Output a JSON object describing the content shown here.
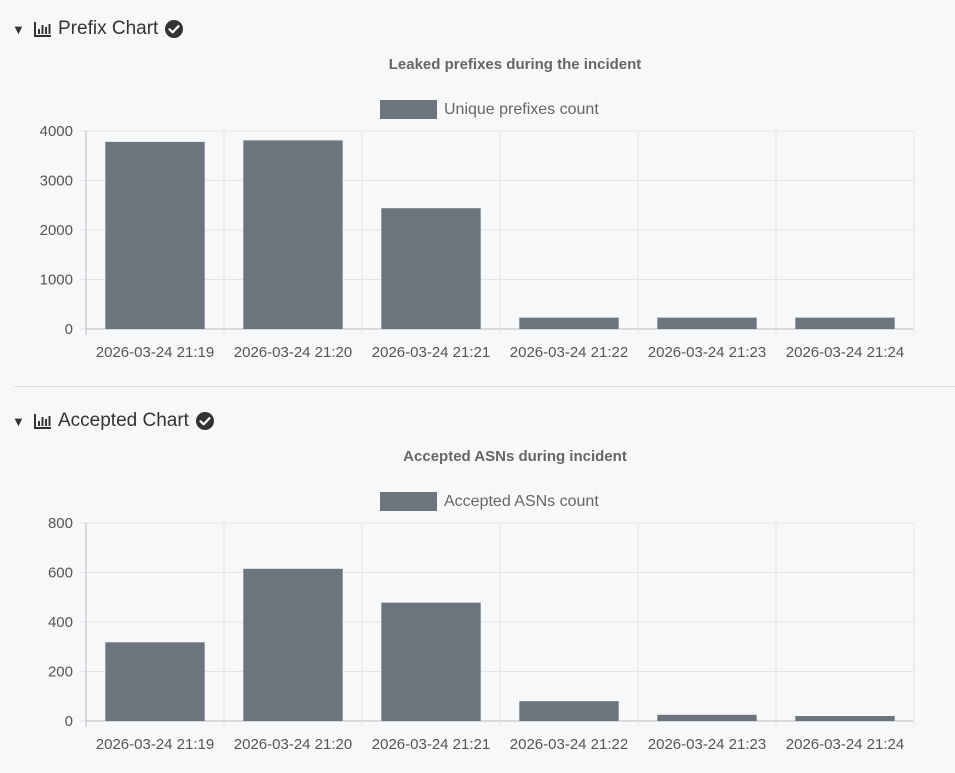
{
  "sections": [
    {
      "label": "Prefix Chart",
      "chart_icon": "bar-chart-icon",
      "status_icon": "check-circle-icon",
      "expanded": true
    },
    {
      "label": "Accepted Chart",
      "chart_icon": "bar-chart-icon",
      "status_icon": "check-circle-icon",
      "expanded": true
    }
  ],
  "colors": {
    "bar": "#6c757d"
  },
  "chart_data": [
    {
      "type": "bar",
      "title": "Leaked prefixes during the incident",
      "legend": "Unique prefixes count",
      "categories": [
        "2026-03-24 21:19",
        "2026-03-24 21:20",
        "2026-03-24 21:21",
        "2026-03-24 21:22",
        "2026-03-24 21:23",
        "2026-03-24 21:24"
      ],
      "values": [
        3780,
        3810,
        2440,
        230,
        230,
        230
      ],
      "ylim": [
        0,
        4000
      ],
      "yticks": [
        0,
        1000,
        2000,
        3000,
        4000
      ],
      "xlabel": "",
      "ylabel": "",
      "grid": true
    },
    {
      "type": "bar",
      "title": "Accepted ASNs during incident",
      "legend": "Accepted ASNs count",
      "categories": [
        "2026-03-24 21:19",
        "2026-03-24 21:20",
        "2026-03-24 21:21",
        "2026-03-24 21:22",
        "2026-03-24 21:23",
        "2026-03-24 21:24"
      ],
      "values": [
        318,
        615,
        478,
        80,
        25,
        20
      ],
      "ylim": [
        0,
        800
      ],
      "yticks": [
        0,
        200,
        400,
        600,
        800
      ],
      "xlabel": "",
      "ylabel": "",
      "grid": true
    }
  ]
}
